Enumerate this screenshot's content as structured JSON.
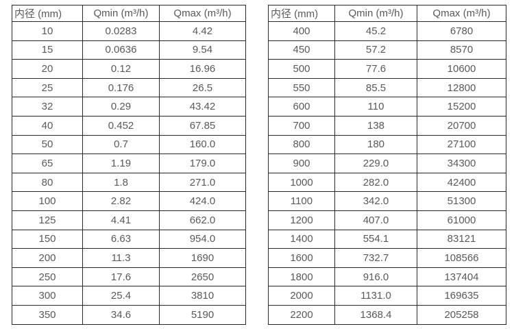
{
  "page": {
    "background": "#ffffff",
    "text_color": "#595959",
    "border_color": "#262626"
  },
  "tables": [
    {
      "name": "flow-spec-table-small-diameters",
      "headers": [
        "内径 (mm)",
        "Qmin (m³/h)",
        "Qmax (m³/h)"
      ],
      "rows": [
        [
          "10",
          "0.0283",
          "4.42"
        ],
        [
          "15",
          "0.0636",
          "9.54"
        ],
        [
          "20",
          "0.12",
          "16.96"
        ],
        [
          "25",
          "0.176",
          "26.5"
        ],
        [
          "32",
          "0.29",
          "43.42"
        ],
        [
          "40",
          "0.452",
          "67.85"
        ],
        [
          "50",
          "0.7",
          "160.0"
        ],
        [
          "65",
          "1.19",
          "179.0"
        ],
        [
          "80",
          "1.8",
          "271.0"
        ],
        [
          "100",
          "2.82",
          "424.0"
        ],
        [
          "125",
          "4.41",
          "662.0"
        ],
        [
          "150",
          "6.63",
          "954.0"
        ],
        [
          "200",
          "11.3",
          "1690"
        ],
        [
          "250",
          "17.6",
          "2650"
        ],
        [
          "300",
          "25.4",
          "3810"
        ],
        [
          "350",
          "34.6",
          "5190"
        ]
      ]
    },
    {
      "name": "flow-spec-table-large-diameters",
      "headers": [
        "内径 (mm)",
        "Qmin (m³/h)",
        "Qmax (m³/h)"
      ],
      "rows": [
        [
          "400",
          "45.2",
          "6780"
        ],
        [
          "450",
          "57.2",
          "8570"
        ],
        [
          "500",
          "77.6",
          "10600"
        ],
        [
          "550",
          "85.5",
          "12800"
        ],
        [
          "600",
          "110",
          "15200"
        ],
        [
          "700",
          "138",
          "20700"
        ],
        [
          "800",
          "180",
          "27100"
        ],
        [
          "900",
          "229.0",
          "34300"
        ],
        [
          "1000",
          "282.0",
          "42400"
        ],
        [
          "1100",
          "342.0",
          "51300"
        ],
        [
          "1200",
          "407.0",
          "61000"
        ],
        [
          "1400",
          "554.1",
          "83121"
        ],
        [
          "1600",
          "732.7",
          "108566"
        ],
        [
          "1800",
          "916.0",
          "137404"
        ],
        [
          "2000",
          "1131.0",
          "169635"
        ],
        [
          "2200",
          "1368.4",
          "205258"
        ]
      ]
    }
  ]
}
